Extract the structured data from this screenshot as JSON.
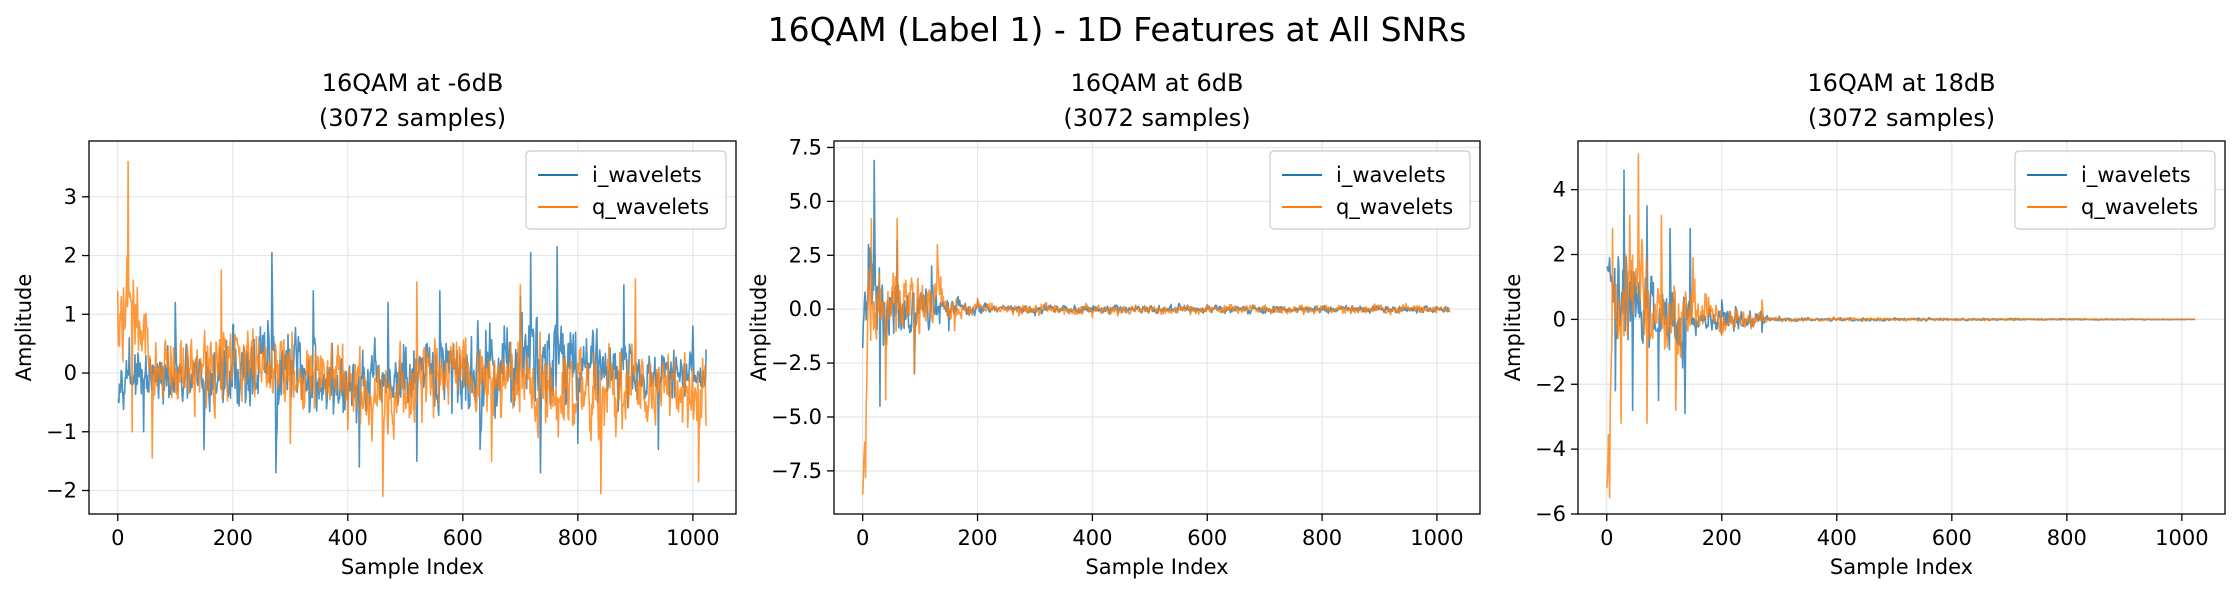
{
  "figure": {
    "title": "16QAM (Label 1) - 1D Features at All SNRs"
  },
  "colors": {
    "i_wavelets": "#1f77b4",
    "q_wavelets": "#ff7f0e",
    "grid": "#e6e6e6",
    "axes": "#000000"
  },
  "chart_data": [
    {
      "type": "line",
      "title": "16QAM at -6dB\n(3072 samples)",
      "xlabel": "Sample Index",
      "ylabel": "Amplitude",
      "xlim": [
        -50,
        1075
      ],
      "ylim": [
        -2.4,
        3.95
      ],
      "xticks": [
        0,
        200,
        400,
        600,
        800,
        1000
      ],
      "yticks": [
        -2,
        -1,
        0,
        1,
        2,
        3
      ],
      "ytick_labels": [
        "−2",
        "−1",
        "0",
        "1",
        "2",
        "3"
      ],
      "grid": true,
      "legend_position": "upper right",
      "n_points": 1024,
      "series": [
        {
          "name": "i_wavelets",
          "keypoints": [
            [
              0,
              -0.45
            ],
            [
              20,
              0.6
            ],
            [
              45,
              -1.0
            ],
            [
              100,
              1.2
            ],
            [
              150,
              -1.3
            ],
            [
              200,
              0.8
            ],
            [
              268,
              2.05
            ],
            [
              275,
              -1.7
            ],
            [
              340,
              1.4
            ],
            [
              420,
              -1.6
            ],
            [
              470,
              1.2
            ],
            [
              520,
              -1.5
            ],
            [
              560,
              1.4
            ],
            [
              630,
              -1.3
            ],
            [
              700,
              1.3
            ],
            [
              718,
              2.05
            ],
            [
              735,
              -1.7
            ],
            [
              764,
              2.15
            ],
            [
              800,
              -1.2
            ],
            [
              880,
              1.5
            ],
            [
              940,
              -1.3
            ],
            [
              1000,
              0.8
            ],
            [
              1023,
              0.4
            ]
          ],
          "envelope": [
            [
              [
                0,
                0.8
              ],
              [
                100,
                0.95
              ],
              [
                268,
                2.05
              ],
              [
                400,
                1.05
              ],
              [
                718,
                2.05
              ],
              [
                764,
                2.15
              ],
              [
                900,
                1.1
              ],
              [
                1023,
                0.9
              ]
            ],
            [
              [
                0,
                -0.85
              ],
              [
                150,
                -1.5
              ],
              [
                275,
                -1.75
              ],
              [
                440,
                -1.6
              ],
              [
                735,
                -1.7
              ],
              [
                820,
                -1.3
              ],
              [
                1023,
                -1.0
              ]
            ]
          ]
        },
        {
          "name": "q_wavelets",
          "keypoints": [
            [
              0,
              1.4
            ],
            [
              10,
              1.45
            ],
            [
              18,
              3.6
            ],
            [
              25,
              -1.0
            ],
            [
              60,
              -1.45
            ],
            [
              180,
              1.75
            ],
            [
              300,
              -1.2
            ],
            [
              461,
              -2.1
            ],
            [
              520,
              1.55
            ],
            [
              650,
              -1.5
            ],
            [
              700,
              1.5
            ],
            [
              840,
              -2.05
            ],
            [
              900,
              1.6
            ],
            [
              1010,
              -1.85
            ],
            [
              1023,
              -0.9
            ]
          ],
          "envelope": [
            [
              [
                0,
                1.45
              ],
              [
                18,
                3.6
              ],
              [
                60,
                1.3
              ],
              [
                180,
                1.75
              ],
              [
                400,
                1.3
              ],
              [
                600,
                1.4
              ],
              [
                900,
                1.6
              ],
              [
                1023,
                1.2
              ]
            ],
            [
              [
                0,
                -0.9
              ],
              [
                100,
                -1.4
              ],
              [
                300,
                -1.3
              ],
              [
                461,
                -2.15
              ],
              [
                560,
                -1.5
              ],
              [
                840,
                -2.05
              ],
              [
                1010,
                -1.85
              ],
              [
                1023,
                -1.1
              ]
            ]
          ]
        }
      ]
    },
    {
      "type": "line",
      "title": "16QAM at 6dB\n(3072 samples)",
      "xlabel": "Sample Index",
      "ylabel": "Amplitude",
      "xlim": [
        -50,
        1075
      ],
      "ylim": [
        -9.5,
        7.8
      ],
      "xticks": [
        0,
        200,
        400,
        600,
        800,
        1000
      ],
      "yticks": [
        -7.5,
        -5.0,
        -2.5,
        0.0,
        2.5,
        5.0,
        7.5
      ],
      "ytick_labels": [
        "−7.5",
        "−5.0",
        "−2.5",
        "0.0",
        "2.5",
        "5.0",
        "7.5"
      ],
      "grid": true,
      "legend_position": "upper right",
      "n_points": 1024,
      "series": [
        {
          "name": "i_wavelets",
          "keypoints": [
            [
              0,
              -1.8
            ],
            [
              10,
              3.0
            ],
            [
              20,
              6.9
            ],
            [
              30,
              -4.5
            ],
            [
              60,
              3.2
            ],
            [
              90,
              -3.0
            ],
            [
              120,
              2.0
            ],
            [
              150,
              -1.0
            ],
            [
              200,
              0.4
            ],
            [
              300,
              -0.3
            ],
            [
              600,
              0.2
            ],
            [
              1023,
              -0.1
            ]
          ],
          "envelope": [
            [
              [
                0,
                1.5
              ],
              [
                20,
                6.9
              ],
              [
                40,
                3.5
              ],
              [
                80,
                3.0
              ],
              [
                150,
                1.3
              ],
              [
                180,
                0.7
              ],
              [
                250,
                0.5
              ],
              [
                1023,
                0.35
              ]
            ],
            [
              [
                0,
                -2.2
              ],
              [
                30,
                -4.5
              ],
              [
                60,
                -3.4
              ],
              [
                120,
                -1.8
              ],
              [
                170,
                -0.7
              ],
              [
                250,
                -0.5
              ],
              [
                1023,
                -0.35
              ]
            ]
          ]
        },
        {
          "name": "q_wavelets",
          "keypoints": [
            [
              0,
              -8.6
            ],
            [
              5,
              -7.8
            ],
            [
              15,
              4.2
            ],
            [
              40,
              -4.2
            ],
            [
              60,
              4.2
            ],
            [
              90,
              -3.0
            ],
            [
              130,
              3.0
            ],
            [
              160,
              -1.0
            ],
            [
              200,
              0.5
            ],
            [
              400,
              -0.4
            ],
            [
              1023,
              0.0
            ]
          ],
          "envelope": [
            [
              [
                0,
                -7.5
              ],
              [
                10,
                4.3
              ],
              [
                60,
                4.2
              ],
              [
                130,
                3.0
              ],
              [
                170,
                0.9
              ],
              [
                250,
                0.55
              ],
              [
                1023,
                0.4
              ]
            ],
            [
              [
                0,
                -8.8
              ],
              [
                10,
                -4.3
              ],
              [
                40,
                -4.2
              ],
              [
                90,
                -3.1
              ],
              [
                150,
                -1.5
              ],
              [
                200,
                -0.6
              ],
              [
                1023,
                -0.4
              ]
            ]
          ]
        }
      ]
    },
    {
      "type": "line",
      "title": "16QAM at 18dB\n(3072 samples)",
      "xlabel": "Sample Index",
      "ylabel": "Amplitude",
      "xlim": [
        -50,
        1075
      ],
      "ylim": [
        -6.0,
        5.5
      ],
      "xticks": [
        0,
        200,
        400,
        600,
        800,
        1000
      ],
      "yticks": [
        -6,
        -4,
        -2,
        0,
        2,
        4
      ],
      "ytick_labels": [
        "−6",
        "−4",
        "−2",
        "0",
        "2",
        "4"
      ],
      "grid": true,
      "legend_position": "upper right",
      "n_points": 1024,
      "series": [
        {
          "name": "i_wavelets",
          "keypoints": [
            [
              0,
              1.6
            ],
            [
              5,
              1.9
            ],
            [
              15,
              -2.2
            ],
            [
              30,
              4.6
            ],
            [
              45,
              -2.8
            ],
            [
              70,
              3.5
            ],
            [
              90,
              -2.5
            ],
            [
              110,
              2.8
            ],
            [
              136,
              -2.9
            ],
            [
              145,
              2.8
            ],
            [
              200,
              0.6
            ],
            [
              270,
              -0.4
            ],
            [
              300,
              0.1
            ],
            [
              500,
              0.05
            ],
            [
              1023,
              0.0
            ]
          ],
          "envelope": [
            [
              [
                0,
                2.0
              ],
              [
                30,
                4.6
              ],
              [
                60,
                3.6
              ],
              [
                110,
                2.9
              ],
              [
                145,
                2.8
              ],
              [
                160,
                1.0
              ],
              [
                270,
                0.6
              ],
              [
                285,
                0.15
              ],
              [
                520,
                0.1
              ],
              [
                1023,
                0.02
              ]
            ],
            [
              [
                0,
                1.3
              ],
              [
                15,
                -2.3
              ],
              [
                45,
                -2.9
              ],
              [
                90,
                -2.6
              ],
              [
                136,
                -2.95
              ],
              [
                160,
                -1.2
              ],
              [
                270,
                -0.5
              ],
              [
                285,
                -0.15
              ],
              [
                520,
                -0.1
              ],
              [
                1023,
                -0.02
              ]
            ]
          ]
        },
        {
          "name": "q_wavelets",
          "keypoints": [
            [
              0,
              -5.2
            ],
            [
              5,
              -5.5
            ],
            [
              10,
              2.8
            ],
            [
              25,
              -3.2
            ],
            [
              40,
              3.2
            ],
            [
              55,
              5.1
            ],
            [
              70,
              -3.2
            ],
            [
              95,
              3.2
            ],
            [
              120,
              -2.8
            ],
            [
              150,
              1.9
            ],
            [
              200,
              -0.5
            ],
            [
              270,
              0.6
            ],
            [
              300,
              0.05
            ],
            [
              520,
              -0.05
            ],
            [
              1023,
              0.0
            ]
          ],
          "envelope": [
            [
              [
                0,
                -4.8
              ],
              [
                10,
                2.8
              ],
              [
                55,
                5.1
              ],
              [
                95,
                3.2
              ],
              [
                150,
                2.0
              ],
              [
                200,
                1.0
              ],
              [
                270,
                0.6
              ],
              [
                285,
                0.15
              ],
              [
                530,
                0.1
              ],
              [
                1023,
                0.02
              ]
            ],
            [
              [
                0,
                -5.6
              ],
              [
                15,
                -3.5
              ],
              [
                40,
                -3.3
              ],
              [
                70,
                -3.2
              ],
              [
                120,
                -2.8
              ],
              [
                160,
                -1.2
              ],
              [
                270,
                -0.55
              ],
              [
                285,
                -0.15
              ],
              [
                530,
                -0.1
              ],
              [
                1023,
                -0.02
              ]
            ]
          ]
        }
      ]
    }
  ]
}
